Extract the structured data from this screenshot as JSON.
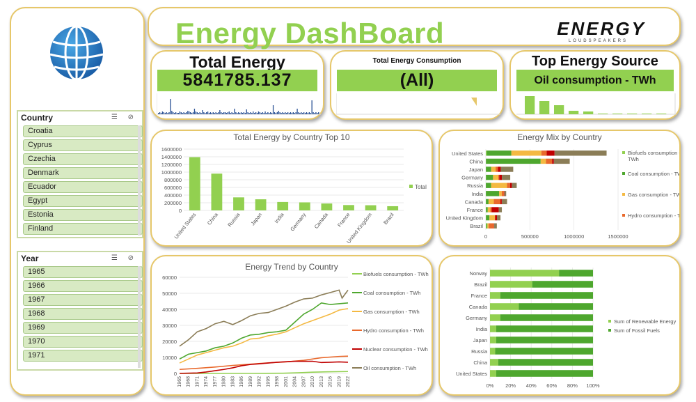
{
  "header": {
    "title": "Energy DashBoard",
    "logo_word": "ENERGY",
    "logo_sub": "LOUDSPEAKERS"
  },
  "kpi_total": {
    "title": "Total Energy",
    "value": "5841785.137"
  },
  "kpi_consumption": {
    "title": "Total Energy Consumption",
    "value": "(All)"
  },
  "kpi_source": {
    "title": "Top Energy Source",
    "value": "Oil consumption - TWh"
  },
  "country_slicer": {
    "title": "Country",
    "items": [
      "Croatia",
      "Cyprus",
      "Czechia",
      "Denmark",
      "Ecuador",
      "Egypt",
      "Estonia",
      "Finland"
    ]
  },
  "year_slicer": {
    "title": "Year",
    "items": [
      "1965",
      "1966",
      "1967",
      "1968",
      "1969",
      "1970",
      "1971"
    ]
  },
  "colors": {
    "accent_green": "#92d050",
    "border_gold": "#e6c76a",
    "biofuels": "#92d050",
    "coal": "#4ea72e",
    "gas": "#f4b942",
    "hydro": "#e9692c",
    "nuclear": "#c00000",
    "oil": "#8b7d57",
    "spark": "#2f5597"
  },
  "chart_data": [
    {
      "id": "top10",
      "type": "bar",
      "title": "Total Energy by Country Top 10",
      "categories": [
        "United States",
        "China",
        "Russia",
        "Japan",
        "India",
        "Germany",
        "Canada",
        "France",
        "United Kingdom",
        "Brazil"
      ],
      "series": [
        {
          "name": "Total",
          "values": [
            1390000,
            960000,
            340000,
            290000,
            220000,
            210000,
            180000,
            140000,
            135000,
            110000
          ]
        }
      ],
      "y_ticks": [
        "0",
        "200000",
        "400000",
        "600000",
        "800000",
        "1000000",
        "1200000",
        "1400000",
        "1600000"
      ],
      "ylim": [
        0,
        1600000
      ],
      "legend": "right"
    },
    {
      "id": "mix",
      "type": "bar",
      "orientation": "horizontal-stacked",
      "title": "Energy Mix by Country",
      "categories": [
        "United States",
        "China",
        "Japan",
        "Germany",
        "Russia",
        "India",
        "Canada",
        "France",
        "United Kingdom",
        "Brazil"
      ],
      "series": [
        {
          "name": "Biofuels consumption - TWh",
          "values": [
            10000,
            2000,
            1000,
            2000,
            500,
            1000,
            1000,
            2000,
            1500,
            8000
          ]
        },
        {
          "name": "Coal consumption - TWh",
          "values": [
            280000,
            620000,
            60000,
            80000,
            60000,
            150000,
            30000,
            20000,
            40000,
            10000
          ]
        },
        {
          "name": "Gas consumption - TWh",
          "values": [
            340000,
            60000,
            50000,
            60000,
            180000,
            30000,
            60000,
            30000,
            60000,
            15000
          ]
        },
        {
          "name": "Hydro consumption - TWh",
          "values": [
            60000,
            70000,
            25000,
            10000,
            35000,
            25000,
            75000,
            15000,
            5000,
            60000
          ]
        },
        {
          "name": "Nuclear consumption - TWh",
          "values": [
            90000,
            20000,
            35000,
            30000,
            20000,
            5000,
            15000,
            80000,
            20000,
            2000
          ]
        },
        {
          "name": "Oil consumption - TWh",
          "values": [
            590000,
            180000,
            140000,
            95000,
            55000,
            20000,
            60000,
            35000,
            40000,
            30000
          ]
        }
      ],
      "legend_visible": [
        "Biofuels consumption - TWh",
        "Coal consumption - TWh",
        "Gas consumption - TWh",
        "Hydro consumption - TWh"
      ],
      "x_ticks": [
        "0",
        "500000",
        "1000000",
        "1500000"
      ],
      "xlim": [
        0,
        1500000
      ]
    },
    {
      "id": "trend",
      "type": "line",
      "title": "Energy Trend by Country",
      "x_ticks": [
        "1965",
        "1968",
        "1971",
        "1974",
        "1977",
        "1980",
        "1983",
        "1986",
        "1989",
        "1992",
        "1995",
        "1998",
        "2001",
        "2004",
        "2007",
        "2010",
        "2013",
        "2016",
        "2019",
        "2022"
      ],
      "y_ticks": [
        "0",
        "10000",
        "20000",
        "30000",
        "40000",
        "50000",
        "60000"
      ],
      "ylim": [
        0,
        60000
      ],
      "xlim": [
        1965,
        2022
      ],
      "series": [
        {
          "name": "Biofuels consumption - TWh",
          "x": [
            1965,
            1990,
            2000,
            2005,
            2010,
            2015,
            2022
          ],
          "y": [
            0,
            50,
            150,
            400,
            800,
            1000,
            1200
          ]
        },
        {
          "name": "Coal consumption - TWh",
          "x": [
            1965,
            1968,
            1971,
            1974,
            1977,
            1980,
            1983,
            1986,
            1989,
            1992,
            1995,
            1998,
            2001,
            2004,
            2007,
            2010,
            2013,
            2016,
            2019,
            2022
          ],
          "y": [
            9000,
            12000,
            13000,
            14000,
            16000,
            17000,
            19000,
            22000,
            24000,
            24500,
            25500,
            26000,
            27000,
            32000,
            37000,
            40000,
            44000,
            43000,
            43500,
            44000
          ]
        },
        {
          "name": "Gas consumption - TWh",
          "x": [
            1965,
            1968,
            1971,
            1974,
            1977,
            1980,
            1983,
            1986,
            1989,
            1992,
            1995,
            1998,
            2001,
            2004,
            2007,
            2010,
            2013,
            2016,
            2019,
            2022
          ],
          "y": [
            6500,
            9000,
            11500,
            13000,
            14500,
            16000,
            17000,
            19000,
            21500,
            22000,
            23500,
            24500,
            26000,
            28500,
            31000,
            33000,
            35000,
            37000,
            39500,
            40500
          ]
        },
        {
          "name": "Hydro consumption - TWh",
          "x": [
            1965,
            1971,
            1977,
            1983,
            1989,
            1995,
            2001,
            2007,
            2013,
            2019,
            2022
          ],
          "y": [
            2500,
            3200,
            4000,
            5000,
            5800,
            6600,
            7200,
            8200,
            9800,
            10600,
            10800
          ]
        },
        {
          "name": "Nuclear consumption - TWh",
          "x": [
            1965,
            1971,
            1974,
            1977,
            1980,
            1983,
            1986,
            1989,
            1992,
            1995,
            1998,
            2001,
            2004,
            2007,
            2010,
            2013,
            2016,
            2019,
            2022
          ],
          "y": [
            50,
            300,
            900,
            1700,
            2500,
            3500,
            4800,
            5600,
            6000,
            6500,
            7000,
            7300,
            7600,
            7600,
            7600,
            6800,
            7000,
            7200,
            7000
          ]
        },
        {
          "name": "Oil consumption - TWh",
          "x": [
            1965,
            1968,
            1971,
            1974,
            1977,
            1980,
            1983,
            1986,
            1989,
            1992,
            1995,
            1998,
            2001,
            2004,
            2007,
            2010,
            2013,
            2016,
            2019,
            2020,
            2022
          ],
          "y": [
            17000,
            21000,
            26000,
            28000,
            31000,
            32500,
            30500,
            33000,
            36000,
            37500,
            38000,
            40000,
            42000,
            44500,
            46500,
            47000,
            49000,
            50500,
            52000,
            47000,
            52000
          ]
        }
      ]
    },
    {
      "id": "share",
      "type": "bar",
      "orientation": "horizontal-100-stacked",
      "categories": [
        "Norway",
        "Brazil",
        "France",
        "Canada",
        "Germany",
        "India",
        "Japan",
        "Russia",
        "China",
        "United States"
      ],
      "series": [
        {
          "name": "Sum of Renewable Energy",
          "values": [
            0.67,
            0.41,
            0.1,
            0.28,
            0.1,
            0.06,
            0.06,
            0.05,
            0.08,
            0.06
          ]
        },
        {
          "name": "Sum of Fossil Fuels",
          "values": [
            0.33,
            0.59,
            0.9,
            0.72,
            0.9,
            0.94,
            0.94,
            0.95,
            0.92,
            0.94
          ]
        }
      ],
      "x_ticks": [
        "0%",
        "20%",
        "40%",
        "60%",
        "80%",
        "100%"
      ],
      "xlim": [
        0,
        1
      ]
    },
    {
      "id": "spark_total",
      "type": "bar",
      "values": [
        0.2,
        0.3,
        0.2,
        0.4,
        0.3,
        0.2,
        0.3,
        0.2,
        0.3,
        2.2,
        0.5,
        0.3,
        0.2,
        0.3,
        0.2,
        0.2,
        0.4,
        0.3,
        0.2,
        0.3,
        0.2,
        0.3,
        0.5,
        0.4,
        0.3,
        0.2,
        0.3,
        0.8,
        0.4,
        0.3,
        0.2,
        0.3,
        0.2,
        0.6,
        0.3,
        0.2,
        0.3,
        0.4,
        0.2,
        0.3,
        0.2,
        0.3,
        0.2,
        0.3,
        0.2,
        0.3,
        0.6,
        0.3,
        0.2,
        0.3,
        0.3,
        0.2,
        0.3,
        0.4,
        0.2,
        0.3,
        0.2,
        0.8,
        0.3,
        0.2,
        0.3,
        0.2,
        0.3,
        0.2,
        0.3,
        0.2,
        0.7,
        0.3,
        0.2,
        0.3,
        0.2,
        0.4,
        0.2,
        0.3,
        0.2,
        0.4,
        0.3,
        0.2,
        0.3,
        0.2,
        0.4,
        0.2,
        0.3,
        0.2,
        0.3,
        0.2,
        1.3,
        0.3,
        0.2,
        0.3,
        0.5,
        0.3,
        0.2,
        0.3,
        0.2,
        0.3,
        0.2,
        0.3,
        0.2,
        0.3,
        0.2,
        0.3,
        0.2,
        0.3,
        0.8,
        0.3,
        0.2,
        0.3,
        0.2,
        0.3,
        0.2,
        0.3,
        0.2,
        0.3,
        0.2,
        2.0,
        0.3,
        0.2,
        0.3,
        0.2,
        0.3
      ]
    },
    {
      "id": "spark_source",
      "type": "bar",
      "values": [
        52,
        38,
        26,
        10,
        8,
        2,
        2,
        2,
        2,
        2
      ]
    }
  ]
}
